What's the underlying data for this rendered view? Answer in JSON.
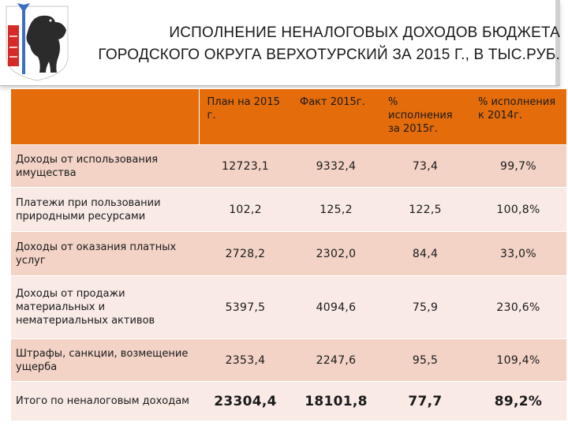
{
  "header": {
    "title_line1": "ИСПОЛНЕНИЕ НЕНАЛОГОВЫХ ДОХОДОВ БЮДЖЕТА",
    "title_line2": "ГОРОДСКОГО ОКРУГА ВЕРХОТУРСКИЙ ЗА 2015 Г., В ТЫС.РУБ.",
    "emblem": "coat-of-arms-icon"
  },
  "table": {
    "columns": [
      "",
      "План на 2015 г.",
      "Факт 2015г.",
      "% исполнения за 2015г.",
      "% исполнения к 2014г."
    ],
    "rows": [
      {
        "label": "Доходы от использования имущества",
        "plan": "12723,1",
        "fact": "9332,4",
        "pct_2015": "73,4",
        "pct_2014": "99,7%"
      },
      {
        "label": "Платежи при пользовании природными ресурсами",
        "plan": "102,2",
        "fact": "125,2",
        "pct_2015": "122,5",
        "pct_2014": "100,8%"
      },
      {
        "label": "Доходы от оказания платных услуг",
        "plan": "2728,2",
        "fact": "2302,0",
        "pct_2015": "84,4",
        "pct_2014": "33,0%"
      },
      {
        "label": "Доходы от продажи материальных и нематериальных активов",
        "plan": "5397,5",
        "fact": "4094,6",
        "pct_2015": "75,9",
        "pct_2014": "230,6%"
      },
      {
        "label": "Штрафы, санкции, возмещение ущерба",
        "plan": "2353,4",
        "fact": "2247,6",
        "pct_2015": "95,5",
        "pct_2014": "109,4%"
      }
    ],
    "total": {
      "label": "Итого по неналоговым доходам",
      "plan": "23304,4",
      "fact": "18101,8",
      "pct_2015": "77,7",
      "pct_2014": "89,2%"
    }
  },
  "colors": {
    "header_bg": "#e46c0a",
    "row_odd": "#f2d3c6",
    "row_even": "#f9eae5"
  }
}
